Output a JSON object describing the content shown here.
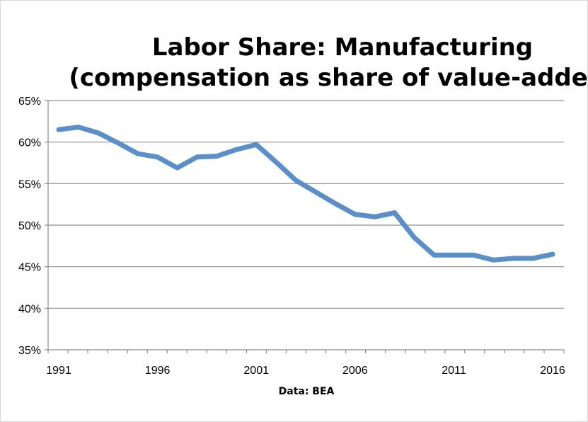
{
  "chart_data": {
    "type": "line",
    "title_lines": [
      "Labor Share: Manufacturing",
      "(compensation as share of value-added)"
    ],
    "xlabel": "Data: BEA",
    "ylabel": "",
    "ylim": [
      35,
      65
    ],
    "xlim": [
      1991,
      2016
    ],
    "y_ticks": [
      35,
      40,
      45,
      50,
      55,
      60,
      65
    ],
    "y_tick_labels": [
      "35%",
      "40%",
      "45%",
      "50%",
      "55%",
      "60%",
      "65%"
    ],
    "x_ticks": [
      1991,
      1996,
      2001,
      2006,
      2011,
      2016
    ],
    "x_tick_labels": [
      "1991",
      "1996",
      "2001",
      "2006",
      "2011",
      "2016"
    ],
    "grid": true,
    "legend": "none",
    "series": [
      {
        "color": "#5B8FC9",
        "x": [
          1991,
          1992,
          1993,
          1994,
          1995,
          1996,
          1997,
          1998,
          1999,
          2000,
          2001,
          2002,
          2003,
          2004,
          2005,
          2006,
          2007,
          2008,
          2009,
          2010,
          2011,
          2012,
          2013,
          2014,
          2015,
          2016
        ],
        "values": [
          61.5,
          61.8,
          61.1,
          59.9,
          58.6,
          58.2,
          56.9,
          58.2,
          58.3,
          59.1,
          59.7,
          57.6,
          55.4,
          54.0,
          52.6,
          51.3,
          51.0,
          51.5,
          48.5,
          46.4,
          46.4,
          46.4,
          45.8,
          46.0,
          46.0,
          46.5
        ]
      }
    ]
  }
}
